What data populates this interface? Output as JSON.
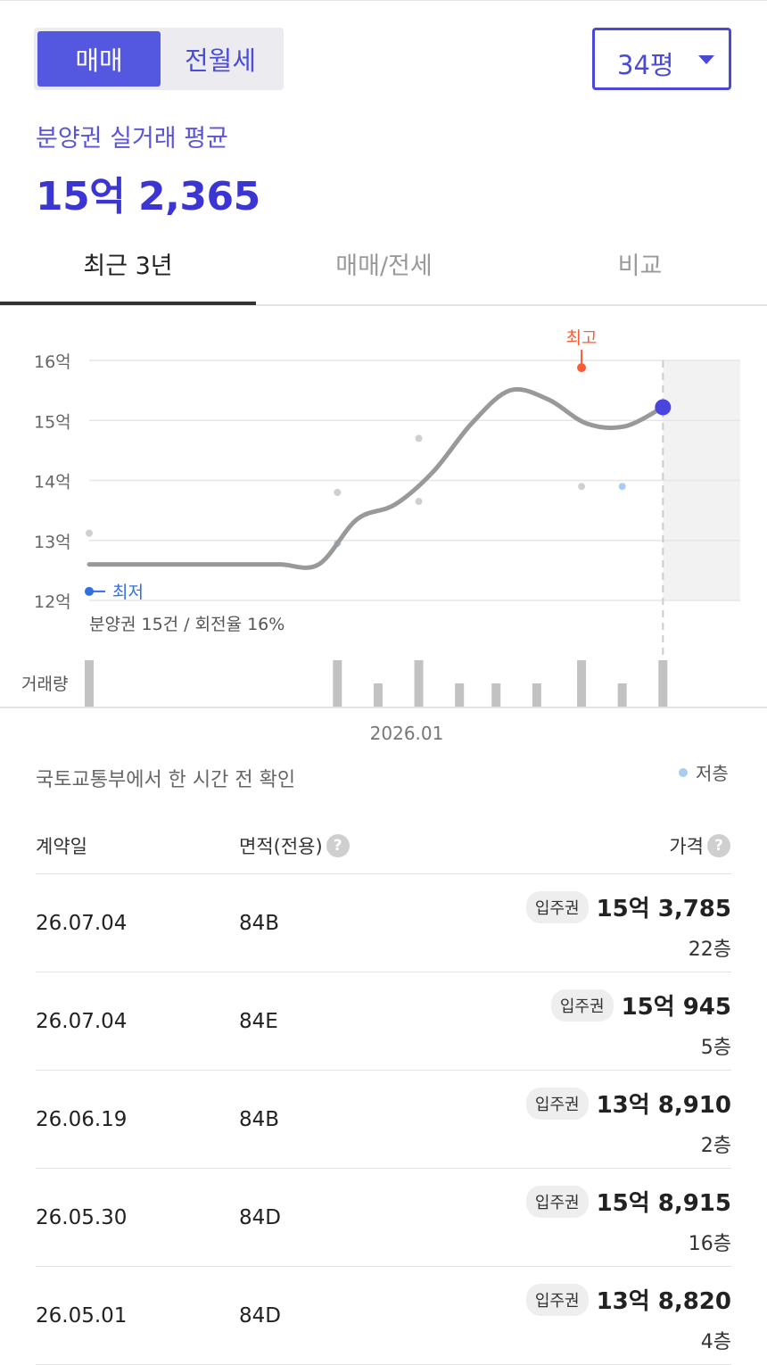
{
  "deal_toggle": {
    "active": "매매",
    "inactive": "전월세"
  },
  "size_select": {
    "value": "34평"
  },
  "summary": {
    "label": "분양권 실거래 평균",
    "price": "15억 2,365"
  },
  "tabs": [
    "최근 3년",
    "매매/전세",
    "비교"
  ],
  "chart_data": {
    "type": "line",
    "y_tick_labels": [
      "16억",
      "15억",
      "14억",
      "13억",
      "12억"
    ],
    "y_ticks": [
      16,
      15,
      14,
      13,
      12
    ],
    "ylim": [
      12,
      16
    ],
    "x_label": "2026.01",
    "trend_line": [
      {
        "x": 0,
        "y": 12.6
      },
      {
        "x": 1,
        "y": 12.6
      },
      {
        "x": 2,
        "y": 12.6
      },
      {
        "x": 3,
        "y": 12.6
      },
      {
        "x": 4,
        "y": 12.6
      },
      {
        "x": 5,
        "y": 12.6
      },
      {
        "x": 6,
        "y": 12.6
      },
      {
        "x": 7,
        "y": 13.35
      },
      {
        "x": 8,
        "y": 13.6
      },
      {
        "x": 9,
        "y": 14.15
      },
      {
        "x": 10,
        "y": 14.95
      },
      {
        "x": 11,
        "y": 15.5
      },
      {
        "x": 12,
        "y": 15.35
      },
      {
        "x": 13,
        "y": 14.95
      },
      {
        "x": 14,
        "y": 14.9
      },
      {
        "x": 15,
        "y": 15.22
      }
    ],
    "scatter_points": [
      {
        "x": 0,
        "y": 13.12,
        "low_floor": false
      },
      {
        "x": 6.1,
        "y": 13.8,
        "low_floor": false
      },
      {
        "x": 6.1,
        "y": 12.95,
        "low_floor": true
      },
      {
        "x": 8.1,
        "y": 14.7,
        "low_floor": false
      },
      {
        "x": 8.1,
        "y": 13.65,
        "low_floor": false
      },
      {
        "x": 12.1,
        "y": 13.9,
        "low_floor": false
      },
      {
        "x": 13.1,
        "y": 13.9,
        "low_floor": true
      }
    ],
    "highest": {
      "x": 12.1,
      "y": 15.88,
      "label": "최고"
    },
    "lowest": {
      "x": 0,
      "y": 12.15,
      "label": "최저"
    },
    "current": {
      "x": 14.1,
      "y": 15.22
    },
    "volume_label": "거래량",
    "volume": [
      {
        "x": 0,
        "v": 2
      },
      {
        "x": 6.1,
        "v": 2
      },
      {
        "x": 7.1,
        "v": 1
      },
      {
        "x": 8.1,
        "v": 2
      },
      {
        "x": 9.1,
        "v": 1
      },
      {
        "x": 10.0,
        "v": 1
      },
      {
        "x": 11.0,
        "v": 1
      },
      {
        "x": 12.1,
        "v": 2
      },
      {
        "x": 13.1,
        "v": 1
      },
      {
        "x": 14.1,
        "v": 2
      }
    ],
    "note": "분양권 15건 / 회전율 16%",
    "colors": {
      "line": "#999999",
      "highest": "#ff5a36",
      "lowest": "#2f6fe0",
      "current": "#4b45e0",
      "scatter": "#cfcfcf",
      "low_floor": "#a9cdf2",
      "volume": "#c2c2c2"
    }
  },
  "source_note": "국토교통부에서 한 시간 전 확인",
  "legend_low_floor": "저층",
  "table": {
    "headers": {
      "date": "계약일",
      "area": "면적(전용)",
      "price": "가격"
    },
    "rows": [
      {
        "date": "26.07.04",
        "area": "84B",
        "badge": "입주권",
        "price": "15억 3,785",
        "floor": "22층"
      },
      {
        "date": "26.07.04",
        "area": "84E",
        "badge": "입주권",
        "price": "15억 945",
        "floor": "5층"
      },
      {
        "date": "26.06.19",
        "area": "84B",
        "badge": "입주권",
        "price": "13억 8,910",
        "floor": "2층"
      },
      {
        "date": "26.05.30",
        "area": "84D",
        "badge": "입주권",
        "price": "15억 8,915",
        "floor": "16층"
      },
      {
        "date": "26.05.01",
        "area": "84D",
        "badge": "입주권",
        "price": "13억 8,820",
        "floor": "4층"
      }
    ]
  }
}
